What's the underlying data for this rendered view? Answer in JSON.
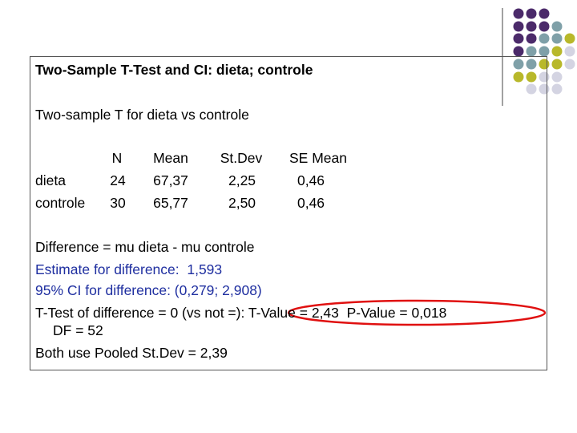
{
  "title": "Two-Sample T-Test and CI: dieta; controle",
  "subtitle": "Two-sample T for dieta vs controle",
  "table": {
    "header": [
      "N",
      "Mean",
      "St.Dev",
      "SE Mean"
    ],
    "rows": [
      [
        "dieta",
        "24",
        "67,37",
        "2,25",
        "0,46"
      ],
      [
        "controle",
        "30",
        "65,77",
        "2,50",
        "0,46"
      ]
    ]
  },
  "lines": [
    "Difference = mu dieta - mu controle",
    "Estimate for difference:  1,593",
    "95% CI for difference: (0,279; 2,908)",
    "T-Test of difference = 0 (vs not =): T-Value = 2,43  P-Value = 0,018",
    "DF = 52",
    "Both use Pooled St.Dev = 2,39"
  ]
}
